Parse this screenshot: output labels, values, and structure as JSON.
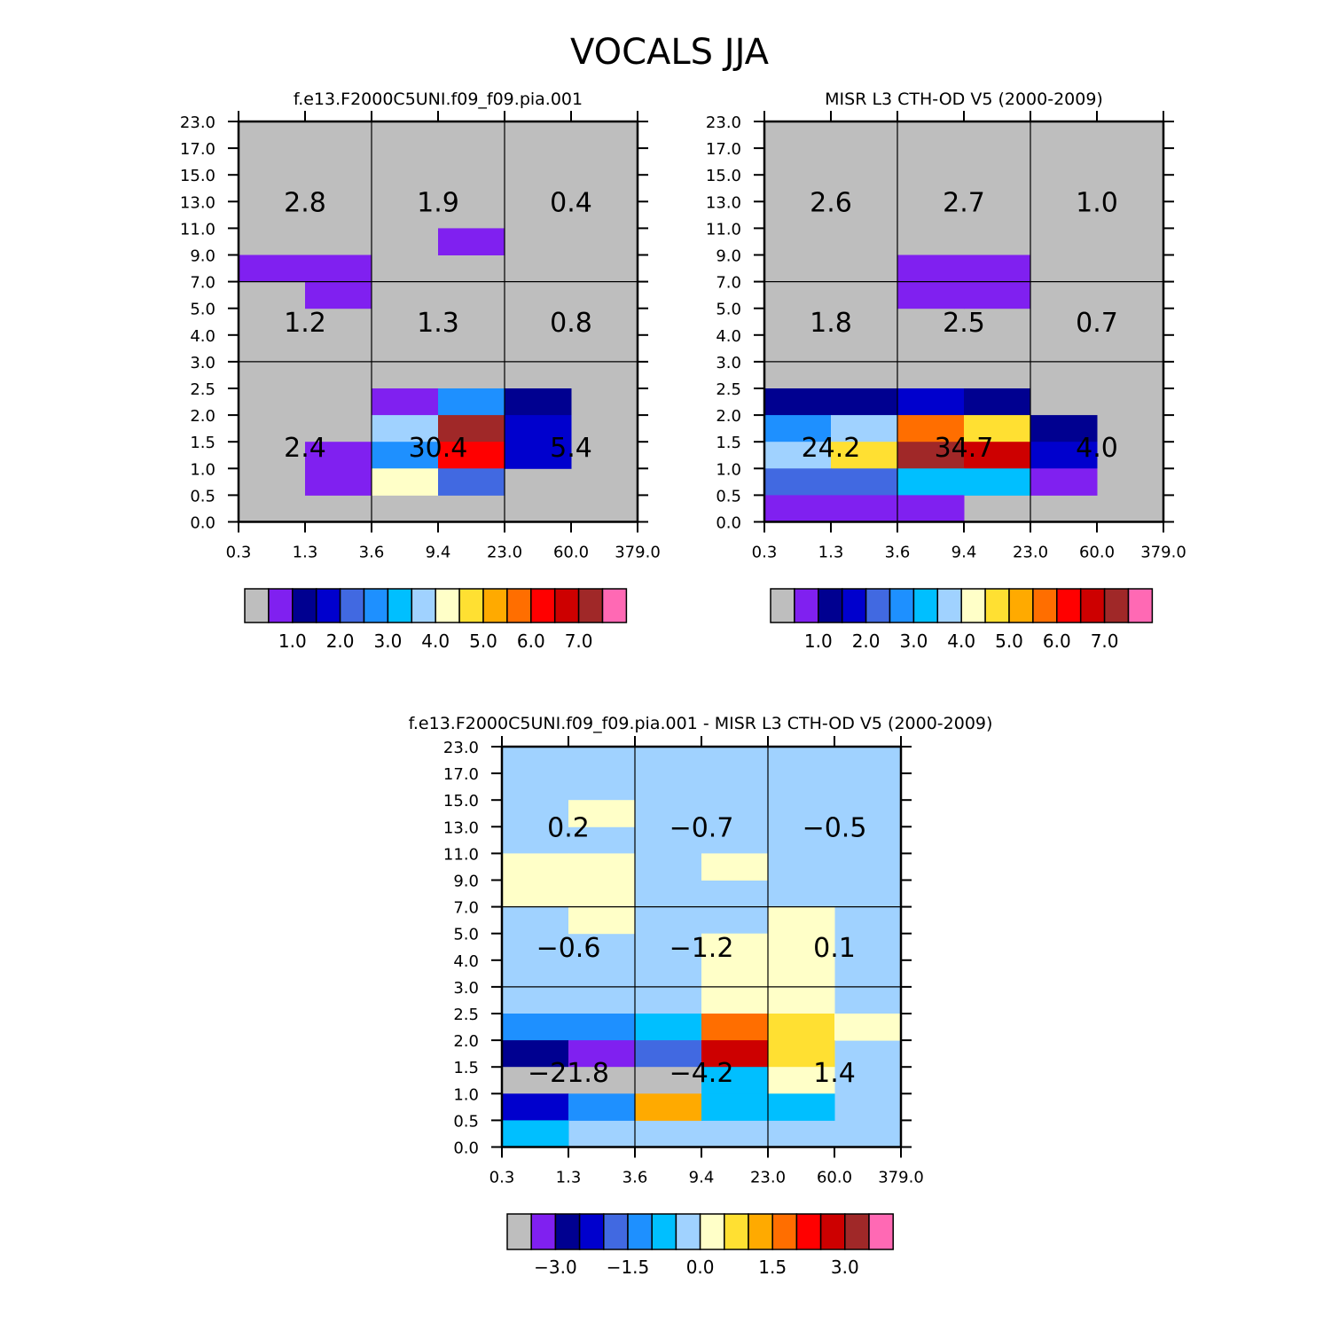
{
  "figure": {
    "title": "VOCALS JJA"
  },
  "colors": {
    "background": "#bebebe",
    "palette": [
      "#bebebe",
      "#8020f0",
      "#000090",
      "#0000cd",
      "#4169e1",
      "#1e90ff",
      "#00bfff",
      "#a0d2ff",
      "#ffffc8",
      "#ffe032",
      "#ffaa00",
      "#ff6e00",
      "#ff0000",
      "#cd0000",
      "#a02828",
      "#ff69b4"
    ]
  },
  "chart_data": [
    {
      "type": "heatmap",
      "title": "f.e13.F2000C5UNI.f09_f09.pia.001",
      "x_ticks": [
        "0.3",
        "1.3",
        "3.6",
        "9.4",
        "23.0",
        "60.0",
        "379.0"
      ],
      "y_ticks": [
        "0.0",
        "0.5",
        "1.0",
        "1.5",
        "2.0",
        "2.5",
        "3.0",
        "4.0",
        "5.0",
        "7.0",
        "9.0",
        "11.0",
        "13.0",
        "15.0",
        "17.0",
        "23.0"
      ],
      "nonbackground_cells": [
        {
          "x": 0,
          "y": 9,
          "c": 1
        },
        {
          "x": 1,
          "y": 9,
          "c": 1
        },
        {
          "x": 1,
          "y": 8,
          "c": 1
        },
        {
          "x": 3,
          "y": 10,
          "c": 1
        },
        {
          "x": 1,
          "y": 1,
          "c": 1
        },
        {
          "x": 1,
          "y": 2,
          "c": 1
        },
        {
          "x": 2,
          "y": 4,
          "c": 1
        },
        {
          "x": 3,
          "y": 4,
          "c": 5
        },
        {
          "x": 4,
          "y": 4,
          "c": 2
        },
        {
          "x": 2,
          "y": 3,
          "c": 7
        },
        {
          "x": 3,
          "y": 3,
          "c": 14
        },
        {
          "x": 4,
          "y": 3,
          "c": 3
        },
        {
          "x": 2,
          "y": 2,
          "c": 5
        },
        {
          "x": 3,
          "y": 2,
          "c": 12
        },
        {
          "x": 4,
          "y": 2,
          "c": 3
        },
        {
          "x": 2,
          "y": 1,
          "c": 8
        },
        {
          "x": 3,
          "y": 1,
          "c": 4
        }
      ],
      "region_values": [
        {
          "col": 0,
          "row": 2,
          "label": "2.8"
        },
        {
          "col": 1,
          "row": 2,
          "label": "1.9"
        },
        {
          "col": 2,
          "row": 2,
          "label": "0.4"
        },
        {
          "col": 0,
          "row": 1,
          "label": "1.2"
        },
        {
          "col": 1,
          "row": 1,
          "label": "1.3"
        },
        {
          "col": 2,
          "row": 1,
          "label": "0.8"
        },
        {
          "col": 0,
          "row": 0,
          "label": "2.4"
        },
        {
          "col": 1,
          "row": 0,
          "label": "30.4"
        },
        {
          "col": 2,
          "row": 0,
          "label": "5.4"
        }
      ],
      "colorbar": {
        "colors": [
          "#bebebe",
          "#8020f0",
          "#000090",
          "#0000cd",
          "#4169e1",
          "#1e90ff",
          "#00bfff",
          "#a0d2ff",
          "#ffffc8",
          "#ffe032",
          "#ffaa00",
          "#ff6e00",
          "#ff0000",
          "#cd0000",
          "#a02828",
          "#ff69b4"
        ],
        "labels": [
          {
            "at": 2,
            "text": "1.0"
          },
          {
            "at": 4,
            "text": "2.0"
          },
          {
            "at": 6,
            "text": "3.0"
          },
          {
            "at": 8,
            "text": "4.0"
          },
          {
            "at": 10,
            "text": "5.0"
          },
          {
            "at": 12,
            "text": "6.0"
          },
          {
            "at": 14,
            "text": "7.0"
          }
        ]
      }
    },
    {
      "type": "heatmap",
      "title": "MISR L3 CTH-OD V5 (2000-2009)",
      "x_ticks": [
        "0.3",
        "1.3",
        "3.6",
        "9.4",
        "23.0",
        "60.0",
        "379.0"
      ],
      "y_ticks": [
        "0.0",
        "0.5",
        "1.0",
        "1.5",
        "2.0",
        "2.5",
        "3.0",
        "4.0",
        "5.0",
        "7.0",
        "9.0",
        "11.0",
        "13.0",
        "15.0",
        "17.0",
        "23.0"
      ],
      "nonbackground_cells": [
        {
          "x": 2,
          "y": 9,
          "c": 1
        },
        {
          "x": 3,
          "y": 9,
          "c": 1
        },
        {
          "x": 2,
          "y": 8,
          "c": 1
        },
        {
          "x": 3,
          "y": 8,
          "c": 1
        },
        {
          "x": 0,
          "y": 4,
          "c": 2
        },
        {
          "x": 1,
          "y": 4,
          "c": 2
        },
        {
          "x": 2,
          "y": 4,
          "c": 3
        },
        {
          "x": 3,
          "y": 4,
          "c": 2
        },
        {
          "x": 0,
          "y": 3,
          "c": 5
        },
        {
          "x": 1,
          "y": 3,
          "c": 7
        },
        {
          "x": 2,
          "y": 3,
          "c": 11
        },
        {
          "x": 3,
          "y": 3,
          "c": 9
        },
        {
          "x": 4,
          "y": 3,
          "c": 2
        },
        {
          "x": 0,
          "y": 2,
          "c": 7
        },
        {
          "x": 1,
          "y": 2,
          "c": 9
        },
        {
          "x": 2,
          "y": 2,
          "c": 14
        },
        {
          "x": 3,
          "y": 2,
          "c": 13
        },
        {
          "x": 4,
          "y": 2,
          "c": 3
        },
        {
          "x": 0,
          "y": 1,
          "c": 4
        },
        {
          "x": 1,
          "y": 1,
          "c": 4
        },
        {
          "x": 2,
          "y": 1,
          "c": 6
        },
        {
          "x": 3,
          "y": 1,
          "c": 6
        },
        {
          "x": 4,
          "y": 1,
          "c": 1
        },
        {
          "x": 0,
          "y": 0,
          "c": 1
        },
        {
          "x": 1,
          "y": 0,
          "c": 1
        },
        {
          "x": 2,
          "y": 0,
          "c": 1
        }
      ],
      "region_values": [
        {
          "col": 0,
          "row": 2,
          "label": "2.6"
        },
        {
          "col": 1,
          "row": 2,
          "label": "2.7"
        },
        {
          "col": 2,
          "row": 2,
          "label": "1.0"
        },
        {
          "col": 0,
          "row": 1,
          "label": "1.8"
        },
        {
          "col": 1,
          "row": 1,
          "label": "2.5"
        },
        {
          "col": 2,
          "row": 1,
          "label": "0.7"
        },
        {
          "col": 0,
          "row": 0,
          "label": "24.2"
        },
        {
          "col": 1,
          "row": 0,
          "label": "34.7"
        },
        {
          "col": 2,
          "row": 0,
          "label": "4.0"
        }
      ],
      "colorbar": {
        "colors": [
          "#bebebe",
          "#8020f0",
          "#000090",
          "#0000cd",
          "#4169e1",
          "#1e90ff",
          "#00bfff",
          "#a0d2ff",
          "#ffffc8",
          "#ffe032",
          "#ffaa00",
          "#ff6e00",
          "#ff0000",
          "#cd0000",
          "#a02828",
          "#ff69b4"
        ],
        "labels": [
          {
            "at": 2,
            "text": "1.0"
          },
          {
            "at": 4,
            "text": "2.0"
          },
          {
            "at": 6,
            "text": "3.0"
          },
          {
            "at": 8,
            "text": "4.0"
          },
          {
            "at": 10,
            "text": "5.0"
          },
          {
            "at": 12,
            "text": "6.0"
          },
          {
            "at": 14,
            "text": "7.0"
          }
        ]
      }
    },
    {
      "type": "heatmap",
      "title": "f.e13.F2000C5UNI.f09_f09.pia.001 - MISR L3 CTH-OD V5 (2000-2009)",
      "background_color": "#a0d2ff",
      "x_ticks": [
        "0.3",
        "1.3",
        "3.6",
        "9.4",
        "23.0",
        "60.0",
        "379.0"
      ],
      "y_ticks": [
        "0.0",
        "0.5",
        "1.0",
        "1.5",
        "2.0",
        "2.5",
        "3.0",
        "4.0",
        "5.0",
        "7.0",
        "9.0",
        "11.0",
        "13.0",
        "15.0",
        "17.0",
        "23.0"
      ],
      "nonbackground_cells": [
        {
          "x": 1,
          "y": 12,
          "c": 8
        },
        {
          "x": 0,
          "y": 10,
          "c": 8
        },
        {
          "x": 1,
          "y": 10,
          "c": 8
        },
        {
          "x": 3,
          "y": 10,
          "c": 8
        },
        {
          "x": 0,
          "y": 9,
          "c": 8
        },
        {
          "x": 1,
          "y": 9,
          "c": 8
        },
        {
          "x": 1,
          "y": 8,
          "c": 8
        },
        {
          "x": 4,
          "y": 8,
          "c": 8
        },
        {
          "x": 3,
          "y": 7,
          "c": 8
        },
        {
          "x": 4,
          "y": 7,
          "c": 8
        },
        {
          "x": 3,
          "y": 6,
          "c": 8
        },
        {
          "x": 4,
          "y": 6,
          "c": 8
        },
        {
          "x": 3,
          "y": 5,
          "c": 8
        },
        {
          "x": 4,
          "y": 5,
          "c": 8
        },
        {
          "x": 0,
          "y": 4,
          "c": 5
        },
        {
          "x": 1,
          "y": 4,
          "c": 5
        },
        {
          "x": 2,
          "y": 4,
          "c": 6
        },
        {
          "x": 3,
          "y": 4,
          "c": 11
        },
        {
          "x": 4,
          "y": 4,
          "c": 9
        },
        {
          "x": 5,
          "y": 4,
          "c": 8
        },
        {
          "x": 0,
          "y": 3,
          "c": 2
        },
        {
          "x": 1,
          "y": 3,
          "c": 1
        },
        {
          "x": 2,
          "y": 3,
          "c": 4
        },
        {
          "x": 3,
          "y": 3,
          "c": 13
        },
        {
          "x": 4,
          "y": 3,
          "c": 9
        },
        {
          "x": 0,
          "y": 2,
          "c": 0
        },
        {
          "x": 1,
          "y": 2,
          "c": 0
        },
        {
          "x": 2,
          "y": 2,
          "c": 0
        },
        {
          "x": 3,
          "y": 2,
          "c": 6
        },
        {
          "x": 4,
          "y": 2,
          "c": 8
        },
        {
          "x": 0,
          "y": 1,
          "c": 3
        },
        {
          "x": 1,
          "y": 1,
          "c": 5
        },
        {
          "x": 2,
          "y": 1,
          "c": 10
        },
        {
          "x": 3,
          "y": 1,
          "c": 6
        },
        {
          "x": 4,
          "y": 1,
          "c": 6
        },
        {
          "x": 0,
          "y": 0,
          "c": 6
        }
      ],
      "region_values": [
        {
          "col": 0,
          "row": 2,
          "label": "0.2"
        },
        {
          "col": 1,
          "row": 2,
          "label": "−0.7"
        },
        {
          "col": 2,
          "row": 2,
          "label": "−0.5"
        },
        {
          "col": 0,
          "row": 1,
          "label": "−0.6"
        },
        {
          "col": 1,
          "row": 1,
          "label": "−1.2"
        },
        {
          "col": 2,
          "row": 1,
          "label": "0.1"
        },
        {
          "col": 0,
          "row": 0,
          "label": "−21.8"
        },
        {
          "col": 1,
          "row": 0,
          "label": "−4.2"
        },
        {
          "col": 2,
          "row": 0,
          "label": "1.4"
        }
      ],
      "colorbar": {
        "colors": [
          "#bebebe",
          "#8020f0",
          "#000090",
          "#0000cd",
          "#4169e1",
          "#1e90ff",
          "#00bfff",
          "#a0d2ff",
          "#ffffc8",
          "#ffe032",
          "#ffaa00",
          "#ff6e00",
          "#ff0000",
          "#cd0000",
          "#a02828",
          "#ff69b4"
        ],
        "labels": [
          {
            "at": 2,
            "text": "−3.0"
          },
          {
            "at": 5,
            "text": "−1.5"
          },
          {
            "at": 8,
            "text": "0.0"
          },
          {
            "at": 11,
            "text": "1.5"
          },
          {
            "at": 14,
            "text": "3.0"
          }
        ]
      }
    }
  ]
}
